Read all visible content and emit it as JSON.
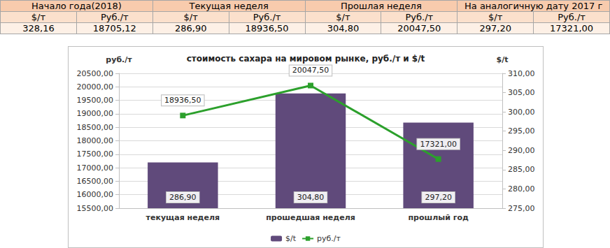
{
  "table": {
    "header": [
      "Начало года(2018)",
      "Текущая неделя",
      "Прошлая неделя",
      "На аналогичную дату 2017 г"
    ],
    "subheader": [
      "$/т",
      "Руб./т",
      "$/т",
      "Руб./т",
      "$/т",
      "Руб./т",
      "$/т",
      "Руб./т"
    ],
    "rows": [
      [
        "328,16",
        "18705,12",
        "286,90",
        "18936,50",
        "304,80",
        "20047,50",
        "297,20",
        "17321,00"
      ]
    ]
  },
  "chart_data": {
    "type": "bar",
    "title": "стоимость сахара на мировом рынке, руб./т и $/t",
    "y_label": "руб./т",
    "y2_label": "$/t",
    "categories": [
      "текущая неделя",
      "прошедшая неделя",
      "прошлый год"
    ],
    "series": [
      {
        "name": "$/t",
        "type": "bar",
        "axis": "y2",
        "color": "#604a7b",
        "values": [
          286.9,
          304.8,
          297.2
        ],
        "value_labels": [
          "286,90",
          "304,80",
          "297,20"
        ]
      },
      {
        "name": "руб./т",
        "type": "line",
        "color": "#2ca02c",
        "marker": "square",
        "line_style": "solid",
        "values": [
          18936.5,
          20047.5,
          17321.0
        ],
        "value_labels": [
          "18936,50",
          "20047,50",
          "17321,00"
        ]
      }
    ],
    "ylim": [
      15500,
      20500
    ],
    "yticks": [
      {
        "value": 15500,
        "label": "15500,00"
      },
      {
        "value": 16000,
        "label": "16000,00"
      },
      {
        "value": 16500,
        "label": "16500,00"
      },
      {
        "value": 17000,
        "label": "17000,00"
      },
      {
        "value": 17500,
        "label": "17500,00"
      },
      {
        "value": 18000,
        "label": "18000,00"
      },
      {
        "value": 18500,
        "label": "18500,00"
      },
      {
        "value": 19000,
        "label": "19000,00"
      },
      {
        "value": 19500,
        "label": "19500,00"
      },
      {
        "value": 20000,
        "label": "20000,00"
      },
      {
        "value": 20500,
        "label": "20500,00"
      }
    ],
    "y2lim": [
      275,
      310
    ],
    "y2ticks": [
      {
        "value": 275,
        "label": "275,00"
      },
      {
        "value": 280,
        "label": "280,00"
      },
      {
        "value": 285,
        "label": "285,00"
      },
      {
        "value": 290,
        "label": "290,00"
      },
      {
        "value": 295,
        "label": "295,00"
      },
      {
        "value": 300,
        "label": "300,00"
      },
      {
        "value": 305,
        "label": "305,00"
      },
      {
        "value": 310,
        "label": "310,00"
      }
    ],
    "grid": true,
    "legend": "bottom",
    "data_labels": true
  }
}
